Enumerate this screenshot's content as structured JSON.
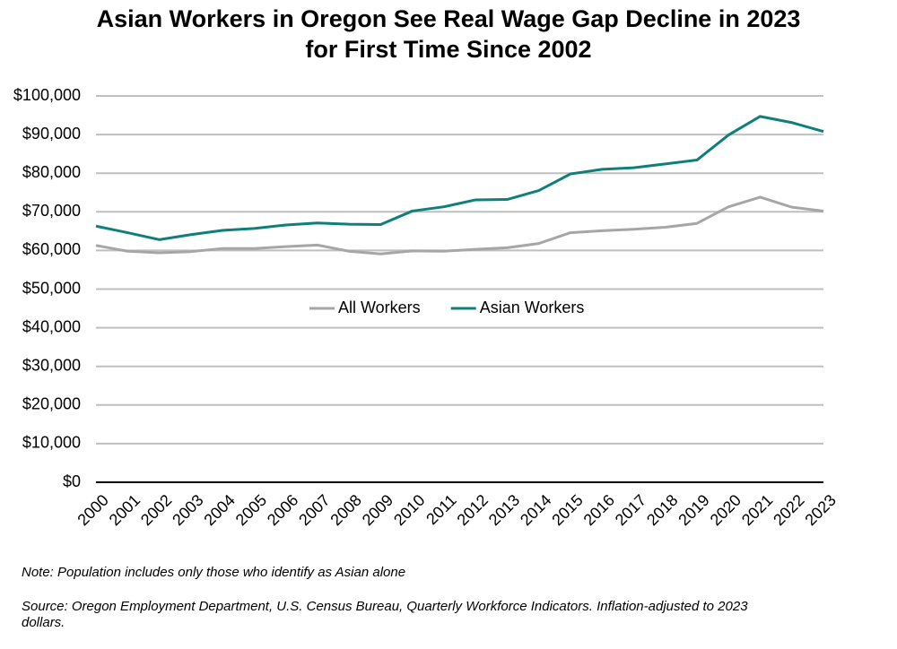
{
  "chart_data": {
    "type": "line",
    "title": "Asian Workers in Oregon See Real Wage Gap Decline in 2023 for First Time Since 2002",
    "categories": [
      "2000",
      "2001",
      "2002",
      "2003",
      "2004",
      "2005",
      "2006",
      "2007",
      "2008",
      "2009",
      "2010",
      "2011",
      "2012",
      "2013",
      "2014",
      "2015",
      "2016",
      "2017",
      "2018",
      "2019",
      "2020",
      "2021",
      "2022",
      "2023"
    ],
    "series": [
      {
        "name": "All Workers",
        "color": "#a6a6a6",
        "values": [
          61300,
          59800,
          59400,
          59700,
          60500,
          60500,
          61000,
          61400,
          59800,
          59100,
          59900,
          59800,
          60300,
          60700,
          61800,
          64600,
          65100,
          65500,
          66000,
          67000,
          71300,
          73800,
          71200,
          70200
        ]
      },
      {
        "name": "Asian Workers",
        "color": "#0f7f7a",
        "values": [
          66300,
          64600,
          62800,
          64100,
          65200,
          65700,
          66600,
          67100,
          66800,
          66700,
          70200,
          71300,
          73100,
          73200,
          75500,
          79800,
          81000,
          81400,
          82400,
          83400,
          89900,
          94700,
          93100,
          90800
        ]
      }
    ],
    "ylim": [
      0,
      100000
    ],
    "yticks": [
      {
        "value": 0,
        "label": "$0"
      },
      {
        "value": 10000,
        "label": "$10,000"
      },
      {
        "value": 20000,
        "label": "$20,000"
      },
      {
        "value": 30000,
        "label": "$30,000"
      },
      {
        "value": 40000,
        "label": "$40,000"
      },
      {
        "value": 50000,
        "label": "$50,000"
      },
      {
        "value": 60000,
        "label": "$60,000"
      },
      {
        "value": 70000,
        "label": "$70,000"
      },
      {
        "value": 80000,
        "label": "$80,000"
      },
      {
        "value": 90000,
        "label": "$90,000"
      },
      {
        "value": 100000,
        "label": "$100,000"
      }
    ],
    "grid": true,
    "legend": "center",
    "note": "Note: Population includes only those who identify as Asian alone",
    "source": "Source: Oregon Employment Department, U.S. Census Bureau, Quarterly Workforce Indicators. Inflation-adjusted to 2023 dollars."
  }
}
